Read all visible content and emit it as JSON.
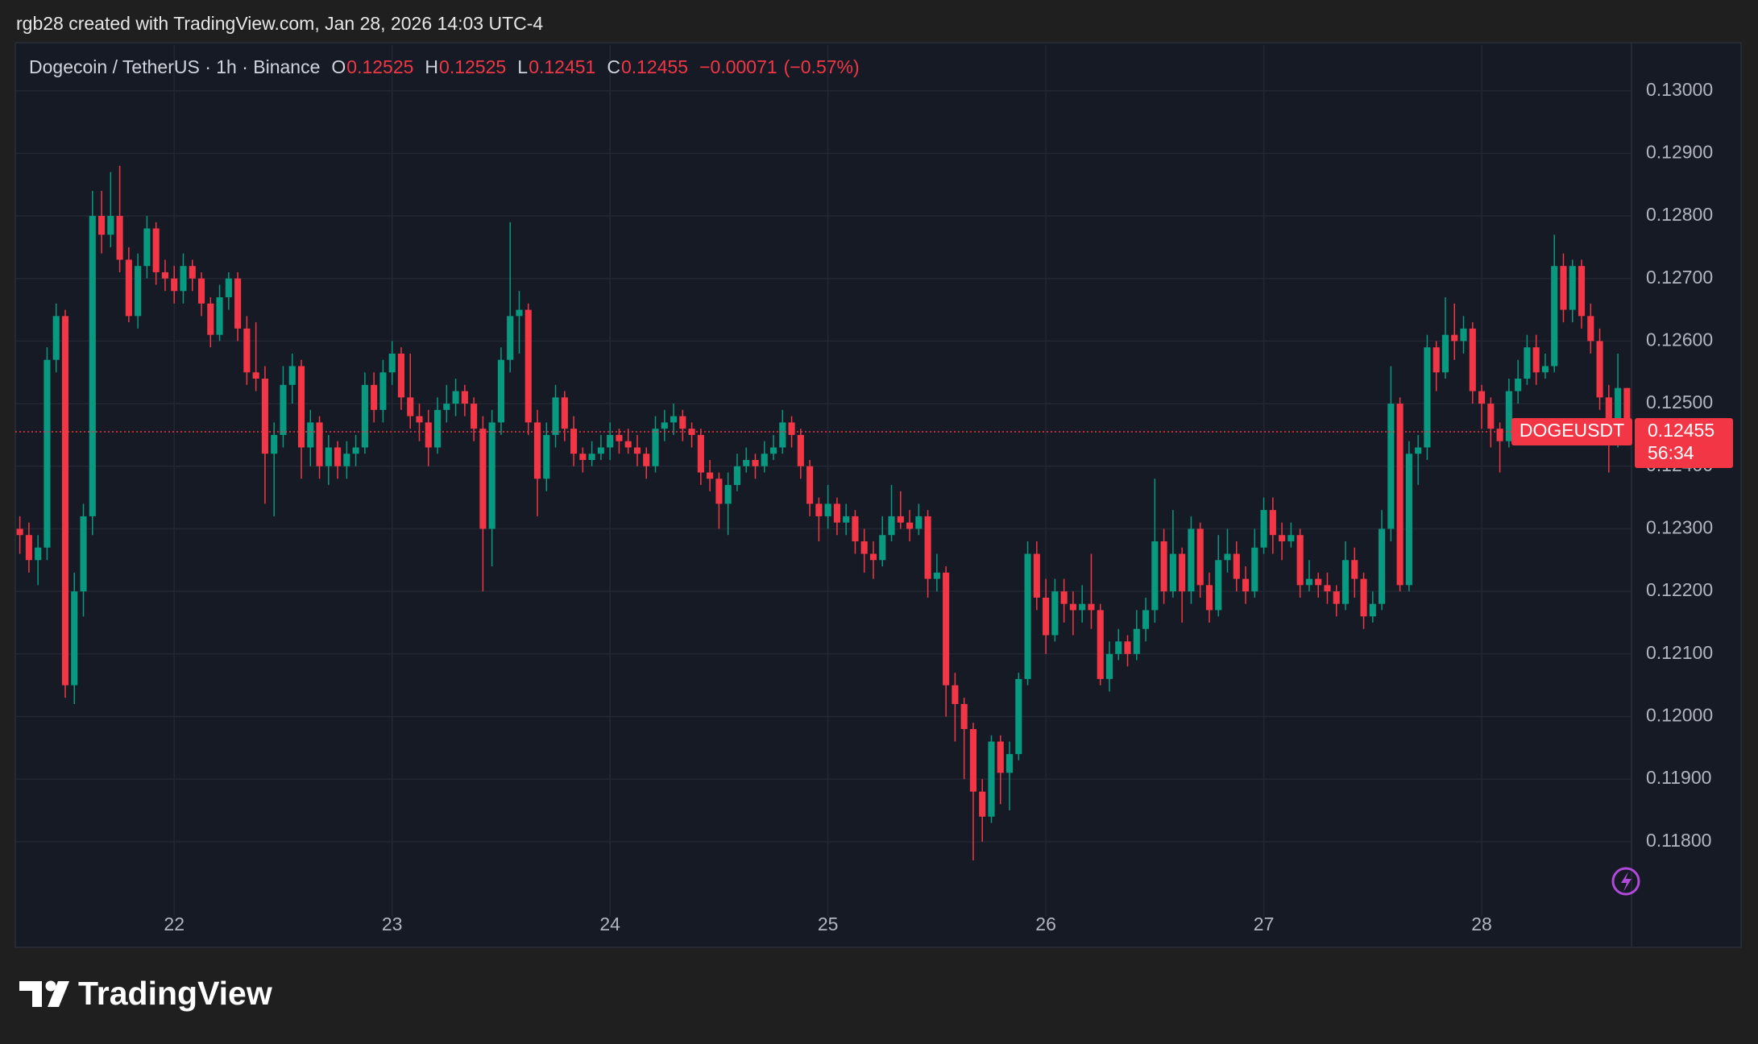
{
  "header": "rgb28 created with TradingView.com, Jan 28, 2026 14:03 UTC-4",
  "logo_text": "TradingView",
  "chart_data": {
    "type": "candlestick",
    "title": "Dogecoin / TetherUS · 1h · Binance",
    "legend": {
      "open_label": "O",
      "open": 0.12525,
      "high_label": "H",
      "high": 0.12525,
      "low_label": "L",
      "low": 0.12451,
      "close_label": "C",
      "close": 0.12455,
      "change": {
        "value": -0.00071,
        "label": "−0.00071"
      },
      "change_pct": {
        "value": -0.57,
        "label": "(−0.57%)"
      }
    },
    "symbol": "DOGEUSDT",
    "countdown": "56:34",
    "up_color": "#089981",
    "down_color": "#f23645",
    "grid": true,
    "ylim": [
      0.11635,
      0.13073
    ],
    "yticks": [
      {
        "value": 0.118,
        "label": "0.11800"
      },
      {
        "value": 0.119,
        "label": "0.11900"
      },
      {
        "value": 0.12,
        "label": "0.12000"
      },
      {
        "value": 0.121,
        "label": "0.12100"
      },
      {
        "value": 0.122,
        "label": "0.12200"
      },
      {
        "value": 0.123,
        "label": "0.12300"
      },
      {
        "value": 0.124,
        "label": "0.12400"
      },
      {
        "value": 0.125,
        "label": "0.12500"
      },
      {
        "value": 0.126,
        "label": "0.12600"
      },
      {
        "value": 0.127,
        "label": "0.12700"
      },
      {
        "value": 0.128,
        "label": "0.12800"
      },
      {
        "value": 0.129,
        "label": "0.12900"
      },
      {
        "value": 0.13,
        "label": "0.13000"
      }
    ],
    "xlim": [
      -0.5,
      177.5
    ],
    "xticks": [
      {
        "value": 17,
        "label": "22"
      },
      {
        "value": 41,
        "label": "23"
      },
      {
        "value": 65,
        "label": "24"
      },
      {
        "value": 89,
        "label": "25"
      },
      {
        "value": 113,
        "label": "26"
      },
      {
        "value": 137,
        "label": "27"
      },
      {
        "value": 161,
        "label": "28"
      }
    ],
    "candles": [
      [
        0.123,
        0.1232,
        0.1226,
        0.1229
      ],
      [
        0.1229,
        0.1231,
        0.1223,
        0.1225
      ],
      [
        0.1225,
        0.1229,
        0.1221,
        0.1227
      ],
      [
        0.1227,
        0.1259,
        0.1225,
        0.1257
      ],
      [
        0.1257,
        0.1266,
        0.1255,
        0.1264
      ],
      [
        0.1264,
        0.1265,
        0.1203,
        0.1205
      ],
      [
        0.1205,
        0.1223,
        0.1202,
        0.122
      ],
      [
        0.122,
        0.1234,
        0.1216,
        0.1232
      ],
      [
        0.1232,
        0.1284,
        0.1229,
        0.128
      ],
      [
        0.128,
        0.1284,
        0.1274,
        0.1277
      ],
      [
        0.1277,
        0.1287,
        0.1275,
        0.128
      ],
      [
        0.128,
        0.1288,
        0.1271,
        0.1273
      ],
      [
        0.1273,
        0.1275,
        0.1263,
        0.1264
      ],
      [
        0.1264,
        0.1274,
        0.1262,
        0.1272
      ],
      [
        0.1272,
        0.128,
        0.127,
        0.1278
      ],
      [
        0.1278,
        0.1279,
        0.1269,
        0.1271
      ],
      [
        0.1271,
        0.1273,
        0.1268,
        0.127
      ],
      [
        0.127,
        0.1272,
        0.1266,
        0.1268
      ],
      [
        0.1268,
        0.1274,
        0.1266,
        0.1272
      ],
      [
        0.1272,
        0.1273,
        0.1268,
        0.127
      ],
      [
        0.127,
        0.1271,
        0.1264,
        0.1266
      ],
      [
        0.1266,
        0.1267,
        0.1259,
        0.1261
      ],
      [
        0.1261,
        0.1269,
        0.126,
        0.1267
      ],
      [
        0.1267,
        0.1271,
        0.1265,
        0.127
      ],
      [
        0.127,
        0.1271,
        0.126,
        0.1262
      ],
      [
        0.1262,
        0.1264,
        0.1253,
        0.1255
      ],
      [
        0.1255,
        0.1263,
        0.1252,
        0.1254
      ],
      [
        0.1254,
        0.1256,
        0.1234,
        0.1242
      ],
      [
        0.1242,
        0.1247,
        0.1232,
        0.1245
      ],
      [
        0.1245,
        0.1256,
        0.1243,
        0.1253
      ],
      [
        0.1253,
        0.1258,
        0.125,
        0.1256
      ],
      [
        0.1256,
        0.1257,
        0.1238,
        0.1243
      ],
      [
        0.1243,
        0.1249,
        0.124,
        0.1247
      ],
      [
        0.1247,
        0.1248,
        0.1238,
        0.124
      ],
      [
        0.124,
        0.1245,
        0.1237,
        0.1243
      ],
      [
        0.1243,
        0.1244,
        0.1238,
        0.124
      ],
      [
        0.124,
        0.1244,
        0.1238,
        0.1242
      ],
      [
        0.1242,
        0.1245,
        0.124,
        0.1243
      ],
      [
        0.1243,
        0.1255,
        0.1242,
        0.1253
      ],
      [
        0.1253,
        0.1255,
        0.1247,
        0.1249
      ],
      [
        0.1249,
        0.1257,
        0.1247,
        0.1255
      ],
      [
        0.1255,
        0.126,
        0.1253,
        0.1258
      ],
      [
        0.1258,
        0.1259,
        0.1249,
        0.1251
      ],
      [
        0.1251,
        0.1258,
        0.1246,
        0.1248
      ],
      [
        0.1248,
        0.125,
        0.1244,
        0.1247
      ],
      [
        0.1247,
        0.1249,
        0.124,
        0.1243
      ],
      [
        0.1243,
        0.1251,
        0.1242,
        0.1249
      ],
      [
        0.1249,
        0.1253,
        0.1247,
        0.125
      ],
      [
        0.125,
        0.1254,
        0.1248,
        0.1252
      ],
      [
        0.1252,
        0.1253,
        0.1248,
        0.125
      ],
      [
        0.125,
        0.1251,
        0.1244,
        0.1246
      ],
      [
        0.1246,
        0.1248,
        0.122,
        0.123
      ],
      [
        0.123,
        0.1249,
        0.1224,
        0.1247
      ],
      [
        0.1247,
        0.1259,
        0.1245,
        0.1257
      ],
      [
        0.1257,
        0.1279,
        0.1255,
        0.1264
      ],
      [
        0.1264,
        0.1268,
        0.1258,
        0.1265
      ],
      [
        0.1265,
        0.1266,
        0.1245,
        0.1247
      ],
      [
        0.1247,
        0.1249,
        0.1232,
        0.1238
      ],
      [
        0.1238,
        0.1247,
        0.1236,
        0.1245
      ],
      [
        0.1245,
        0.1253,
        0.1243,
        0.1251
      ],
      [
        0.1251,
        0.1252,
        0.1244,
        0.1246
      ],
      [
        0.1246,
        0.1248,
        0.124,
        0.1242
      ],
      [
        0.1242,
        0.1243,
        0.1239,
        0.1241
      ],
      [
        0.1241,
        0.1244,
        0.124,
        0.1242
      ],
      [
        0.1242,
        0.1245,
        0.1241,
        0.1243
      ],
      [
        0.1243,
        0.1247,
        0.1241,
        0.1245
      ],
      [
        0.1245,
        0.1246,
        0.1242,
        0.1244
      ],
      [
        0.1244,
        0.1246,
        0.1242,
        0.1243
      ],
      [
        0.1243,
        0.1245,
        0.124,
        0.1242
      ],
      [
        0.1242,
        0.1243,
        0.1238,
        0.124
      ],
      [
        0.124,
        0.1248,
        0.1239,
        0.1246
      ],
      [
        0.1246,
        0.1249,
        0.1244,
        0.1247
      ],
      [
        0.1247,
        0.125,
        0.1245,
        0.1248
      ],
      [
        0.1248,
        0.1249,
        0.1244,
        0.1246
      ],
      [
        0.1246,
        0.1247,
        0.1243,
        0.1245
      ],
      [
        0.1245,
        0.1246,
        0.1237,
        0.1239
      ],
      [
        0.1239,
        0.1241,
        0.1236,
        0.1238
      ],
      [
        0.1238,
        0.1239,
        0.123,
        0.1234
      ],
      [
        0.1234,
        0.1239,
        0.1229,
        0.1237
      ],
      [
        0.1237,
        0.1242,
        0.1236,
        0.124
      ],
      [
        0.124,
        0.1243,
        0.1239,
        0.1241
      ],
      [
        0.1241,
        0.1242,
        0.1238,
        0.124
      ],
      [
        0.124,
        0.1244,
        0.1239,
        0.1242
      ],
      [
        0.1242,
        0.1245,
        0.1241,
        0.1243
      ],
      [
        0.1243,
        0.1249,
        0.1242,
        0.1247
      ],
      [
        0.1247,
        0.1248,
        0.1243,
        0.1245
      ],
      [
        0.1245,
        0.1246,
        0.1238,
        0.124
      ],
      [
        0.124,
        0.1241,
        0.1232,
        0.1234
      ],
      [
        0.1234,
        0.1235,
        0.1228,
        0.1232
      ],
      [
        0.1232,
        0.1237,
        0.123,
        0.1234
      ],
      [
        0.1234,
        0.1235,
        0.1229,
        0.1231
      ],
      [
        0.1231,
        0.1234,
        0.1229,
        0.1232
      ],
      [
        0.1232,
        0.1233,
        0.1226,
        0.1228
      ],
      [
        0.1228,
        0.123,
        0.1223,
        0.1226
      ],
      [
        0.1226,
        0.1228,
        0.1222,
        0.1225
      ],
      [
        0.1225,
        0.1232,
        0.1224,
        0.1229
      ],
      [
        0.1229,
        0.1237,
        0.1228,
        0.1232
      ],
      [
        0.1232,
        0.1236,
        0.123,
        0.1231
      ],
      [
        0.1231,
        0.1233,
        0.1228,
        0.123
      ],
      [
        0.123,
        0.1234,
        0.1229,
        0.1232
      ],
      [
        0.1232,
        0.1233,
        0.1219,
        0.1222
      ],
      [
        0.1222,
        0.1226,
        0.122,
        0.1223
      ],
      [
        0.1223,
        0.1224,
        0.12,
        0.1205
      ],
      [
        0.1205,
        0.1207,
        0.1196,
        0.1202
      ],
      [
        0.1202,
        0.1203,
        0.119,
        0.1198
      ],
      [
        0.1198,
        0.1199,
        0.1177,
        0.1188
      ],
      [
        0.1188,
        0.119,
        0.118,
        0.1184
      ],
      [
        0.1184,
        0.1197,
        0.1183,
        0.1196
      ],
      [
        0.1196,
        0.1197,
        0.1186,
        0.1191
      ],
      [
        0.1191,
        0.1196,
        0.1185,
        0.1194
      ],
      [
        0.1194,
        0.1207,
        0.1193,
        0.1206
      ],
      [
        0.1206,
        0.1228,
        0.1205,
        0.1226
      ],
      [
        0.1226,
        0.1228,
        0.1217,
        0.1219
      ],
      [
        0.1219,
        0.1222,
        0.121,
        0.1213
      ],
      [
        0.1213,
        0.1222,
        0.1212,
        0.122
      ],
      [
        0.122,
        0.1222,
        0.1215,
        0.1218
      ],
      [
        0.1218,
        0.122,
        0.1213,
        0.1217
      ],
      [
        0.1217,
        0.1221,
        0.1215,
        0.1218
      ],
      [
        0.1218,
        0.1226,
        0.1214,
        0.1217
      ],
      [
        0.1217,
        0.1218,
        0.1205,
        0.1206
      ],
      [
        0.1206,
        0.1212,
        0.1204,
        0.121
      ],
      [
        0.121,
        0.1214,
        0.1209,
        0.1212
      ],
      [
        0.1212,
        0.1213,
        0.1208,
        0.121
      ],
      [
        0.121,
        0.1217,
        0.1209,
        0.1214
      ],
      [
        0.1214,
        0.1219,
        0.1212,
        0.1217
      ],
      [
        0.1217,
        0.1238,
        0.1215,
        0.1228
      ],
      [
        0.1228,
        0.123,
        0.1218,
        0.122
      ],
      [
        0.122,
        0.1233,
        0.1219,
        0.1226
      ],
      [
        0.1226,
        0.1227,
        0.1215,
        0.122
      ],
      [
        0.122,
        0.1232,
        0.1218,
        0.123
      ],
      [
        0.123,
        0.1231,
        0.1219,
        0.1221
      ],
      [
        0.1221,
        0.1223,
        0.1215,
        0.1217
      ],
      [
        0.1217,
        0.1229,
        0.1216,
        0.1225
      ],
      [
        0.1225,
        0.123,
        0.1223,
        0.1226
      ],
      [
        0.1226,
        0.1228,
        0.122,
        0.1222
      ],
      [
        0.1222,
        0.1224,
        0.1218,
        0.122
      ],
      [
        0.122,
        0.123,
        0.1219,
        0.1227
      ],
      [
        0.1227,
        0.1235,
        0.1226,
        0.1233
      ],
      [
        0.1233,
        0.1235,
        0.1226,
        0.1229
      ],
      [
        0.1229,
        0.1231,
        0.1225,
        0.1228
      ],
      [
        0.1228,
        0.1231,
        0.1227,
        0.1229
      ],
      [
        0.1229,
        0.123,
        0.1219,
        0.1221
      ],
      [
        0.1221,
        0.1225,
        0.122,
        0.1222
      ],
      [
        0.1222,
        0.1223,
        0.1219,
        0.1221
      ],
      [
        0.1221,
        0.1223,
        0.1218,
        0.122
      ],
      [
        0.122,
        0.1221,
        0.1216,
        0.1218
      ],
      [
        0.1218,
        0.1228,
        0.1217,
        0.1225
      ],
      [
        0.1225,
        0.1227,
        0.1219,
        0.1222
      ],
      [
        0.1222,
        0.1223,
        0.1214,
        0.1216
      ],
      [
        0.1216,
        0.122,
        0.1215,
        0.1218
      ],
      [
        0.1218,
        0.1233,
        0.1217,
        0.123
      ],
      [
        0.123,
        0.1256,
        0.1228,
        0.125
      ],
      [
        0.125,
        0.1251,
        0.122,
        0.1221
      ],
      [
        0.1221,
        0.1244,
        0.122,
        0.1242
      ],
      [
        0.1242,
        0.1245,
        0.1237,
        0.1243
      ],
      [
        0.1243,
        0.1261,
        0.1241,
        0.1259
      ],
      [
        0.1259,
        0.126,
        0.1252,
        0.1255
      ],
      [
        0.1255,
        0.1267,
        0.1254,
        0.1261
      ],
      [
        0.1261,
        0.1266,
        0.1257,
        0.126
      ],
      [
        0.126,
        0.1264,
        0.1258,
        0.1262
      ],
      [
        0.1262,
        0.1263,
        0.125,
        0.1252
      ],
      [
        0.1252,
        0.1253,
        0.1246,
        0.125
      ],
      [
        0.125,
        0.1251,
        0.1243,
        0.1246
      ],
      [
        0.1246,
        0.1247,
        0.1239,
        0.1244
      ],
      [
        0.1244,
        0.1254,
        0.1243,
        0.1252
      ],
      [
        0.1252,
        0.1257,
        0.125,
        0.1254
      ],
      [
        0.1254,
        0.1261,
        0.1253,
        0.1259
      ],
      [
        0.1259,
        0.1261,
        0.1253,
        0.1255
      ],
      [
        0.1255,
        0.1258,
        0.1254,
        0.1256
      ],
      [
        0.1256,
        0.1277,
        0.1255,
        0.1272
      ],
      [
        0.1272,
        0.1274,
        0.1263,
        0.1265
      ],
      [
        0.1265,
        0.1273,
        0.1263,
        0.1272
      ],
      [
        0.1272,
        0.1273,
        0.1262,
        0.1264
      ],
      [
        0.1264,
        0.1266,
        0.1258,
        0.126
      ],
      [
        0.126,
        0.1262,
        0.1249,
        0.1251
      ],
      [
        0.1251,
        0.1253,
        0.1239,
        0.1245
      ],
      [
        0.1245,
        0.1258,
        0.1243,
        0.12525
      ],
      [
        0.12525,
        0.12525,
        0.12451,
        0.12455
      ]
    ]
  }
}
